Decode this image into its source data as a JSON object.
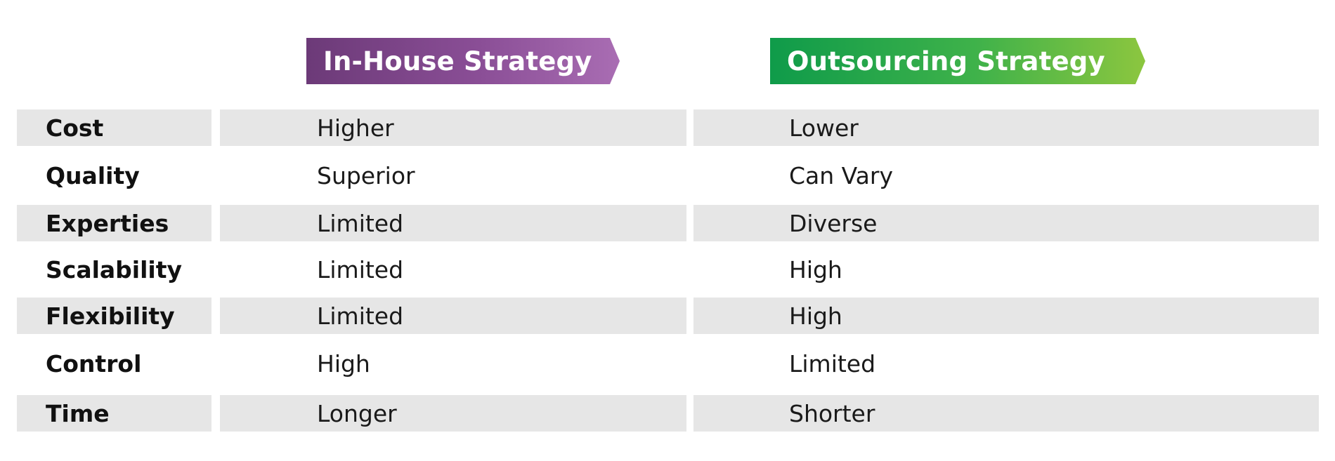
{
  "headers": {
    "in_house": "In-House Strategy",
    "outsourcing": "Outsourcing Strategy"
  },
  "colors": {
    "in_house_gradient": [
      "#6c3a78",
      "#a96db3"
    ],
    "outsourcing_gradient": [
      "#0f9b4a",
      "#8cc63f"
    ],
    "row_shade": "#e6e6e6"
  },
  "rows": [
    {
      "label": "Cost",
      "in_house": "Higher",
      "outsourcing": "Lower"
    },
    {
      "label": "Quality",
      "in_house": "Superior",
      "outsourcing": "Can Vary"
    },
    {
      "label": "Experties",
      "in_house": "Limited",
      "outsourcing": "Diverse"
    },
    {
      "label": "Scalability",
      "in_house": "Limited",
      "outsourcing": "High"
    },
    {
      "label": "Flexibility",
      "in_house": "Limited",
      "outsourcing": "High"
    },
    {
      "label": "Control",
      "in_house": "High",
      "outsourcing": "Limited"
    },
    {
      "label": "Time",
      "in_house": "Longer",
      "outsourcing": "Shorter"
    }
  ]
}
